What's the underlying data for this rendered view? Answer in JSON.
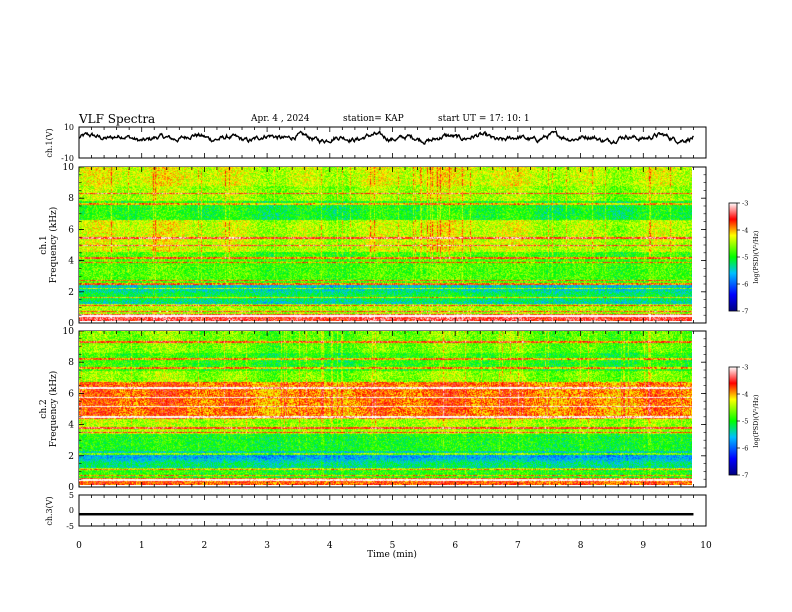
{
  "header": {
    "title": "VLF Spectra",
    "date": "Apr. 4 , 2024",
    "station": "station= KAP",
    "start": "start UT =  17: 10: 1"
  },
  "chart_data": [
    {
      "type": "line",
      "panel": "ch1-waveform",
      "ylabel": "ch.1(V)",
      "ylim": [
        -10,
        10
      ],
      "yticks": [
        "10",
        "-10"
      ],
      "xlim": [
        0,
        10
      ],
      "description_level": "noisy waveform centered near 3 V, amplitude roughly 0 to 6 V",
      "series": [
        {
          "values_mean": 3,
          "values_range": [
            0,
            7
          ]
        }
      ]
    },
    {
      "type": "heatmap",
      "panel": "ch1-spectrogram",
      "ylabel": "Frequency (kHz)",
      "channel_label": "ch.1",
      "ylim": [
        0,
        10
      ],
      "yticks": [
        "0",
        "2",
        "4",
        "6",
        "8",
        "10"
      ],
      "xlim": [
        0,
        10
      ],
      "colorbar": {
        "label": "log(PSD)(V²/Hz)",
        "range": [
          -7,
          -3
        ],
        "ticks": [
          "-3",
          "-4",
          "-5",
          "-6",
          "-7"
        ]
      },
      "bands_khz": [
        0.3,
        0.6,
        1.0,
        1.5,
        2.1,
        2.4,
        2.6,
        3.8,
        4.1,
        4.9,
        5.4,
        7.6,
        8.3
      ]
    },
    {
      "type": "heatmap",
      "panel": "ch2-spectrogram",
      "ylabel": "Frequency (kHz)",
      "channel_label": "ch.2",
      "ylim": [
        0,
        10
      ],
      "yticks": [
        "0",
        "2",
        "4",
        "6",
        "8",
        "10"
      ],
      "xlim": [
        0,
        10
      ],
      "colorbar": {
        "label": "log(PSD)(V²/Hz)",
        "range": [
          -7,
          -3
        ],
        "ticks": [
          "-3",
          "-4",
          "-5",
          "-6",
          "-7"
        ]
      },
      "bands_khz": [
        0.3,
        0.6,
        1.0,
        2.0,
        3.4,
        3.7,
        4.4,
        5.1,
        5.7,
        6.3,
        7.6,
        8.2,
        9.3
      ]
    },
    {
      "type": "line",
      "panel": "ch3-waveform",
      "ylabel": "ch.3(V)",
      "ylim": [
        -5,
        5
      ],
      "yticks": [
        "5",
        "0",
        "-5"
      ],
      "xlim": [
        0,
        10
      ],
      "series": [
        {
          "values_mean": -1.2,
          "values_range": [
            -1.6,
            -0.8
          ]
        }
      ]
    }
  ],
  "xaxis": {
    "label": "Time (min)",
    "ticks": [
      "0",
      "1",
      "2",
      "3",
      "4",
      "5",
      "6",
      "7",
      "8",
      "9",
      "10"
    ]
  },
  "colors": {
    "colormap": [
      "#000080",
      "#0000ff",
      "#00bfff",
      "#00ff00",
      "#ffff00",
      "#ff0000",
      "#ffffff"
    ],
    "waveform": "#000000"
  }
}
